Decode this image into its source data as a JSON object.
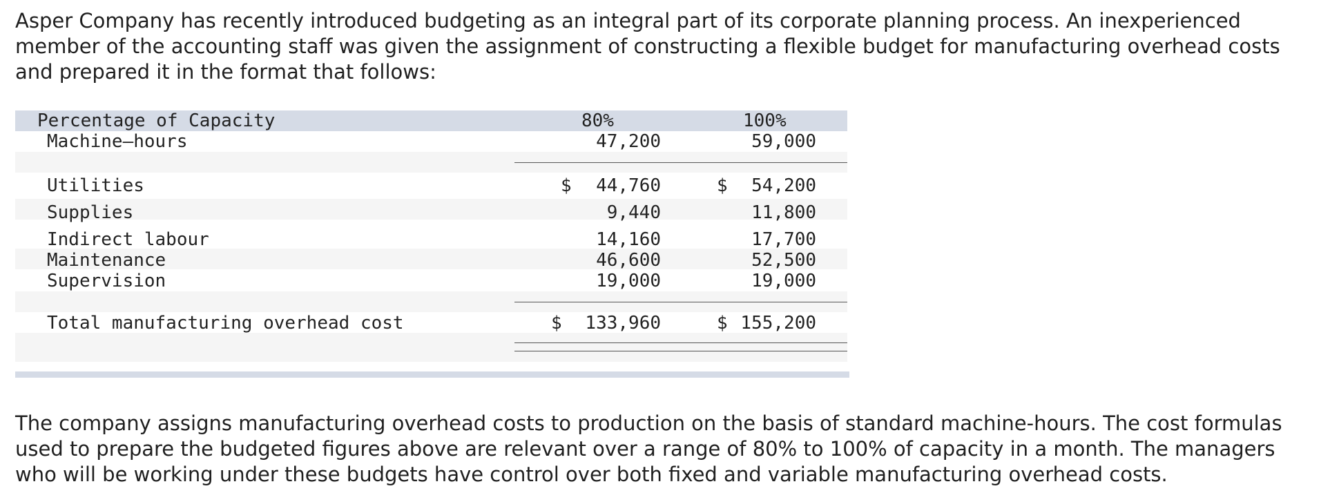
{
  "intro_text": "Asper Company has recently introduced budgeting as an integral part of its corporate planning process. An inexperienced member of the accounting staff was given the assignment of constructing a flexible budget for manufacturing overhead costs and prepared it in the format that follows:",
  "table": {
    "header": {
      "label": "Percentage of Capacity",
      "col1": "80%",
      "col2": "100%"
    },
    "machine_hours": {
      "label": "Machine–hours",
      "col1": "47,200",
      "col2": "59,000"
    },
    "currency_symbol": "$",
    "rows": [
      {
        "label": "Utilities",
        "col1": "44,760",
        "col2": "54,200"
      },
      {
        "label": "Supplies",
        "col1": "9,440",
        "col2": "11,800"
      },
      {
        "label": "Indirect labour",
        "col1": "14,160",
        "col2": "17,700"
      },
      {
        "label": "Maintenance",
        "col1": "46,600",
        "col2": "52,500"
      },
      {
        "label": "Supervision",
        "col1": "19,000",
        "col2": "19,000"
      }
    ],
    "total": {
      "label": "Total manufacturing overhead cost",
      "col1": "133,960",
      "col2": "155,200"
    },
    "colors": {
      "header_band": "#d5dbe6",
      "alt_band": "#f5f5f5"
    }
  },
  "after_text": "The company assigns manufacturing overhead costs to production on the basis of standard machine-hours. The cost formulas used to prepare the budgeted figures above are relevant over a range of 80% to 100% of capacity in a month. The managers who will be working under these budgets have control over both fixed and variable manufacturing overhead costs."
}
